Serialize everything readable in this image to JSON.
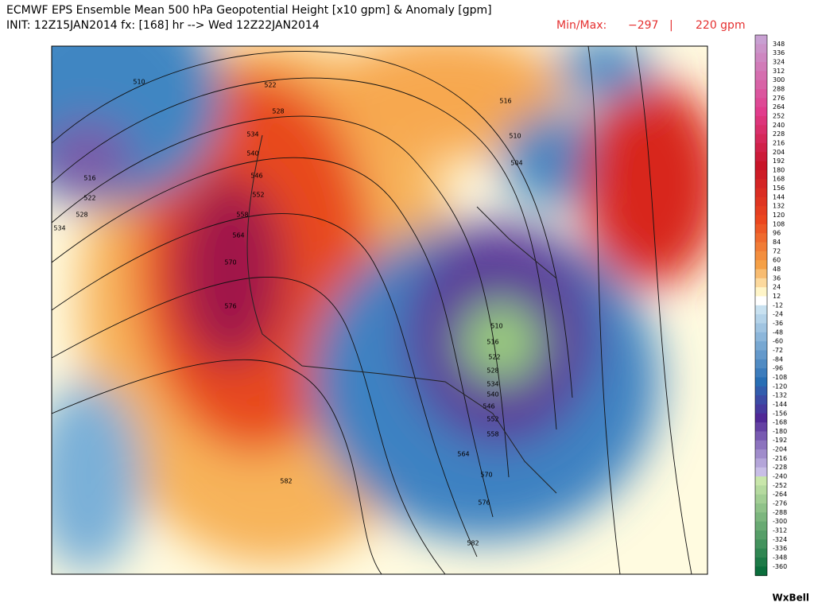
{
  "header": {
    "title": "ECMWF EPS Ensemble Mean 500 hPa Geopotential Height [x10 gpm] & Anomaly [gpm]",
    "init": "INIT: 12Z15JAN2014 fx: [168] hr --> Wed 12Z22JAN2014",
    "min_max": {
      "label": "Min/Max:",
      "min": "−297",
      "separator": "|",
      "max": "220 gpm"
    }
  },
  "map": {
    "contour_labels": [
      "510",
      "516",
      "522",
      "528",
      "534",
      "522",
      "528",
      "534",
      "540",
      "546",
      "552",
      "558",
      "564",
      "570",
      "576",
      "582",
      "516",
      "510",
      "504",
      "510",
      "516",
      "522",
      "528",
      "534",
      "540",
      "546",
      "552",
      "558",
      "564",
      "570",
      "576",
      "582"
    ]
  },
  "colorbar": {
    "labels": [
      "348",
      "336",
      "324",
      "312",
      "300",
      "288",
      "276",
      "264",
      "252",
      "240",
      "228",
      "216",
      "204",
      "192",
      "180",
      "168",
      "156",
      "144",
      "132",
      "120",
      "108",
      "96",
      "84",
      "72",
      "60",
      "48",
      "36",
      "24",
      "12",
      "-12",
      "-24",
      "-36",
      "-48",
      "-60",
      "-72",
      "-84",
      "-96",
      "-108",
      "-120",
      "-132",
      "-144",
      "-156",
      "-168",
      "-180",
      "-192",
      "-204",
      "-216",
      "-228",
      "-240",
      "-252",
      "-264",
      "-276",
      "-288",
      "-300",
      "-312",
      "-324",
      "-336",
      "-348",
      "-360"
    ]
  },
  "logo": "WxBell"
}
